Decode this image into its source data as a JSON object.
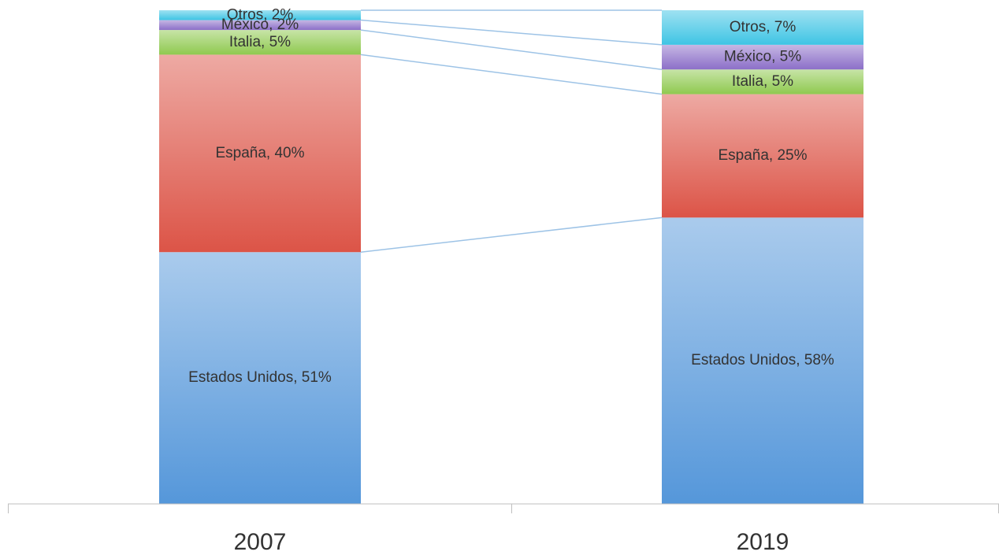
{
  "chart_data": {
    "type": "stacked_bar",
    "categories": [
      "2007",
      "2019"
    ],
    "ylim": [
      0,
      100
    ],
    "series": [
      {
        "name": "Estados Unidos",
        "color": "#5597da",
        "values": [
          51,
          58
        ],
        "value_labels": [
          "Estados Unidos, 51%",
          "Estados Unidos, 58%"
        ]
      },
      {
        "name": "España",
        "color": "#dc5447",
        "values": [
          40,
          25
        ],
        "value_labels": [
          "España, 40%",
          "España, 25%"
        ]
      },
      {
        "name": "Italia",
        "color": "#8fc94f",
        "values": [
          5,
          5
        ],
        "value_labels": [
          "Italia, 5%",
          "Italia, 5%"
        ]
      },
      {
        "name": "México",
        "color": "#8c6fc8",
        "values": [
          2,
          5
        ],
        "value_labels": [
          "México, 2%",
          "México, 5%"
        ]
      },
      {
        "name": "Otros",
        "color": "#3ec4e4",
        "values": [
          2,
          7
        ],
        "value_labels": [
          "Otros, 2%",
          "Otros, 7%"
        ]
      }
    ]
  }
}
